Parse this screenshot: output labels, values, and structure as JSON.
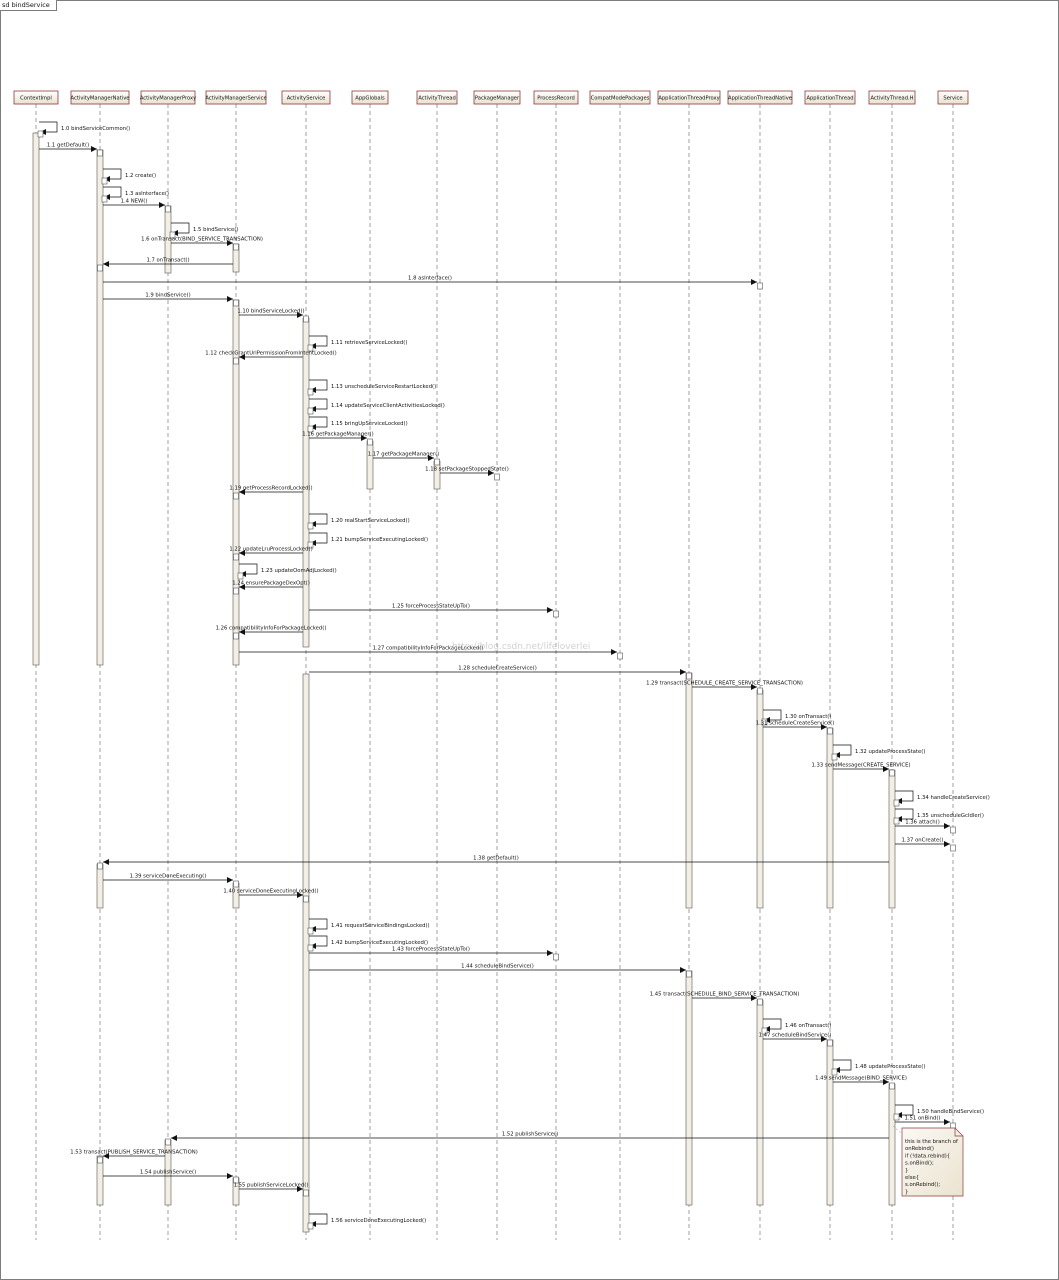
{
  "frame": {
    "title": "sd bindService"
  },
  "participants": [
    "ContextImpl",
    "ActivityManagerNative",
    "ActivityManagerProxy",
    "ActivityManagerService",
    "ActivityService",
    "AppGlobals",
    "ActivityThread",
    "PackageManager",
    "ProcessRecord",
    "CompatModePackages",
    "ApplicationThreadProxy",
    "ApplicationThreadNative",
    "ApplicationThread",
    "ActivityThread.H",
    "Service"
  ],
  "messages": [
    {
      "from": 0,
      "to": 0,
      "label": "1.0 bindServiceCommon()"
    },
    {
      "from": 0,
      "to": 1,
      "label": "1.1 getDefault()"
    },
    {
      "from": 1,
      "to": 1,
      "label": "1.2 create()"
    },
    {
      "from": 1,
      "to": 1,
      "label": "1.3 asInterface()"
    },
    {
      "from": 1,
      "to": 2,
      "label": "1.4 NEW()"
    },
    {
      "from": 2,
      "to": 2,
      "label": "1.5 bindService()"
    },
    {
      "from": 2,
      "to": 3,
      "label": "1.6 onTransact(BIND_SERVICE_TRANSACTION)"
    },
    {
      "from": 3,
      "to": 1,
      "label": "1.7 onTransact()"
    },
    {
      "from": 1,
      "to": 11,
      "label": "1.8 asInterface()"
    },
    {
      "from": 1,
      "to": 3,
      "label": "1.9 bindService()"
    },
    {
      "from": 3,
      "to": 4,
      "label": "1.10 bindServiceLocked()"
    },
    {
      "from": 4,
      "to": 4,
      "label": "1.11 retrieveServiceLocked()"
    },
    {
      "from": 4,
      "to": 3,
      "label": "1.12 checkGrantUriPermissionFromIntentLocked()"
    },
    {
      "from": 4,
      "to": 4,
      "label": "1.13 unscheduleServiceRestartLocked()"
    },
    {
      "from": 4,
      "to": 4,
      "label": "1.14 updateServiceClientActivitiesLocked()"
    },
    {
      "from": 4,
      "to": 4,
      "label": "1.15 bringUpServiceLocked()"
    },
    {
      "from": 4,
      "to": 5,
      "label": "1.16 getPackageManager()"
    },
    {
      "from": 5,
      "to": 6,
      "label": "1.17 getPackageManager()"
    },
    {
      "from": 6,
      "to": 7,
      "label": "1.18 setPackageStoppedState()"
    },
    {
      "from": 4,
      "to": 3,
      "label": "1.19 getProcessRecordLocked()"
    },
    {
      "from": 4,
      "to": 4,
      "label": "1.20 realStartServiceLocked()"
    },
    {
      "from": 4,
      "to": 4,
      "label": "1.21 bumpServiceExecutingLocked()"
    },
    {
      "from": 4,
      "to": 3,
      "label": "1.22 updateLruProcessLocked()"
    },
    {
      "from": 3,
      "to": 3,
      "label": "1.23 updateOomAdjLocked()"
    },
    {
      "from": 4,
      "to": 3,
      "label": "1.24 ensurePackageDexOpt()"
    },
    {
      "from": 4,
      "to": 8,
      "label": "1.25 forceProcessStateUpTo()"
    },
    {
      "from": 4,
      "to": 3,
      "label": "1.26 compatibilityInfoForPackageLocked()"
    },
    {
      "from": 3,
      "to": 9,
      "label": "1.27 compatibilityInfoForPackageLocked()"
    },
    {
      "from": 4,
      "to": 10,
      "label": "1.28 scheduleCreateService()"
    },
    {
      "from": 10,
      "to": 11,
      "label": "1.29 transact(SCHEDULE_CREATE_SERVICE_TRANSACTION)"
    },
    {
      "from": 11,
      "to": 11,
      "label": "1.30 onTransact()"
    },
    {
      "from": 11,
      "to": 12,
      "label": "1.31 scheduleCreateService()"
    },
    {
      "from": 12,
      "to": 12,
      "label": "1.32 updateProcessState()"
    },
    {
      "from": 12,
      "to": 13,
      "label": "1.33 sendMessage(CREATE_SERVICE)"
    },
    {
      "from": 13,
      "to": 13,
      "label": "1.34 handleCreateService()"
    },
    {
      "from": 13,
      "to": 13,
      "label": "1.35 unscheduleGcIdler()"
    },
    {
      "from": 13,
      "to": 14,
      "label": "1.36 attach()"
    },
    {
      "from": 13,
      "to": 14,
      "label": "1.37 onCreate()"
    },
    {
      "from": 13,
      "to": 1,
      "label": "1.38 getDefault()"
    },
    {
      "from": 1,
      "to": 3,
      "label": "1.39 serviceDoneExecuting()"
    },
    {
      "from": 3,
      "to": 4,
      "label": "1.40 serviceDoneExecutingLocked()"
    },
    {
      "from": 4,
      "to": 4,
      "label": "1.41 requestServiceBindingsLocked()"
    },
    {
      "from": 4,
      "to": 4,
      "label": "1.42 bumpServiceExecutingLocked()"
    },
    {
      "from": 4,
      "to": 8,
      "label": "1.43 forceProcessStateUpTo()"
    },
    {
      "from": 4,
      "to": 10,
      "label": "1.44 scheduleBindService()"
    },
    {
      "from": 10,
      "to": 11,
      "label": "1.45 transact(SCHEDULE_BIND_SERVICE_TRANSACTION)"
    },
    {
      "from": 11,
      "to": 11,
      "label": "1.46 onTransact()"
    },
    {
      "from": 11,
      "to": 12,
      "label": "1.47 scheduleBindService()"
    },
    {
      "from": 12,
      "to": 12,
      "label": "1.48 updateProcessState()"
    },
    {
      "from": 12,
      "to": 13,
      "label": "1.49 sendMessage(BIND_SERVICE)"
    },
    {
      "from": 13,
      "to": 13,
      "label": "1.50 handleBindService()"
    },
    {
      "from": 13,
      "to": 14,
      "label": "1.51 onBind()"
    },
    {
      "from": 13,
      "to": 2,
      "label": "1.52 publishService()"
    },
    {
      "from": 2,
      "to": 1,
      "label": "1.53 transact(PUBLISH_SERVICE_TRANSACTION)"
    },
    {
      "from": 1,
      "to": 3,
      "label": "1.54 publishService()"
    },
    {
      "from": 3,
      "to": 4,
      "label": "1.55 publishServiceLocked()"
    },
    {
      "from": 4,
      "to": 4,
      "label": "1.56 serviceDoneExecutingLocked()"
    }
  ],
  "note": {
    "lines": [
      "this is the branch of",
      "onRebind()",
      "if (!data.rebind){",
      "    s.onBind();",
      "}",
      "else{",
      "    s.onRebind();",
      "}"
    ]
  },
  "watermark": "http://blog.csdn.net/lifeloverlei"
}
